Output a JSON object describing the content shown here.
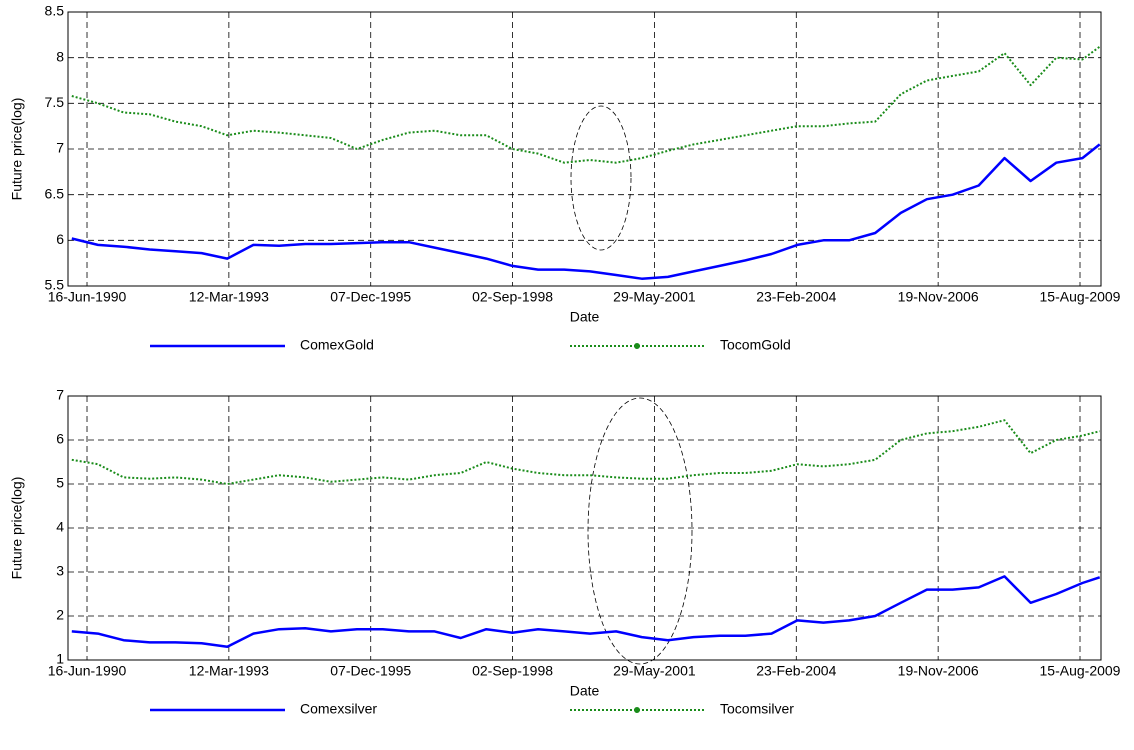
{
  "chart_data": [
    {
      "type": "line",
      "xlabel": "Date",
      "ylabel": "Future price(log)",
      "grid": true,
      "legend": "bottom",
      "x": [
        "1990-03-01",
        "1990-09-01",
        "1991-03-01",
        "1991-09-01",
        "1992-03-01",
        "1992-09-01",
        "1993-03-01",
        "1993-09-01",
        "1994-03-01",
        "1994-09-01",
        "1995-03-01",
        "1995-09-01",
        "1996-03-01",
        "1996-09-01",
        "1997-03-01",
        "1997-09-01",
        "1998-03-01",
        "1998-09-01",
        "1999-03-01",
        "1999-09-01",
        "2000-03-01",
        "2000-09-01",
        "2001-03-01",
        "2001-09-01",
        "2002-03-01",
        "2002-09-01",
        "2003-03-01",
        "2003-09-01",
        "2004-03-01",
        "2004-09-01",
        "2005-03-01",
        "2005-09-01",
        "2006-03-01",
        "2006-09-01",
        "2007-03-01",
        "2007-09-01",
        "2008-03-01",
        "2008-09-01",
        "2009-03-01",
        "2009-09-01",
        "2010-01-01"
      ],
      "xlim": [
        "1990-02-02",
        "2010-01-10"
      ],
      "xticks": [
        {
          "value": "1990-06-16",
          "label": "16-Jun-1990"
        },
        {
          "value": "1993-03-12",
          "label": "12-Mar-1993"
        },
        {
          "value": "1995-12-07",
          "label": "07-Dec-1995"
        },
        {
          "value": "1998-09-02",
          "label": "02-Sep-1998"
        },
        {
          "value": "2001-05-29",
          "label": "29-May-2001"
        },
        {
          "value": "2004-02-23",
          "label": "23-Feb-2004"
        },
        {
          "value": "2006-11-19",
          "label": "19-Nov-2006"
        },
        {
          "value": "2009-08-15",
          "label": "15-Aug-2009"
        }
      ],
      "ylim": [
        5.5,
        8.5
      ],
      "yticks": [
        5.5,
        6,
        6.5,
        7,
        7.5,
        8,
        8.5
      ],
      "series": [
        {
          "name": "ComexGold",
          "color": "#0000ff",
          "style": "solid",
          "values": [
            6.02,
            5.95,
            5.93,
            5.9,
            5.88,
            5.86,
            5.8,
            5.95,
            5.94,
            5.96,
            5.96,
            5.97,
            5.98,
            5.98,
            5.92,
            5.86,
            5.8,
            5.72,
            5.68,
            5.68,
            5.66,
            5.62,
            5.58,
            5.6,
            5.66,
            5.72,
            5.78,
            5.85,
            5.95,
            6.0,
            6.0,
            6.08,
            6.3,
            6.45,
            6.5,
            6.6,
            6.9,
            6.65,
            6.85,
            6.9,
            7.05
          ]
        },
        {
          "name": "TocomGold",
          "color": "#1a8c1a",
          "style": "dotted",
          "values": [
            7.58,
            7.5,
            7.4,
            7.38,
            7.3,
            7.25,
            7.15,
            7.2,
            7.18,
            7.15,
            7.12,
            7.0,
            7.1,
            7.18,
            7.2,
            7.15,
            7.15,
            7.0,
            6.95,
            6.85,
            6.88,
            6.85,
            6.9,
            6.98,
            7.05,
            7.1,
            7.15,
            7.2,
            7.25,
            7.25,
            7.28,
            7.3,
            7.6,
            7.75,
            7.8,
            7.85,
            8.05,
            7.7,
            8.0,
            7.98,
            8.12
          ]
        }
      ]
    },
    {
      "type": "line",
      "xlabel": "Date",
      "ylabel": "Future price(log)",
      "grid": true,
      "legend": "bottom",
      "x": [
        "1990-03-01",
        "1990-09-01",
        "1991-03-01",
        "1991-09-01",
        "1992-03-01",
        "1992-09-01",
        "1993-03-01",
        "1993-09-01",
        "1994-03-01",
        "1994-09-01",
        "1995-03-01",
        "1995-09-01",
        "1996-03-01",
        "1996-09-01",
        "1997-03-01",
        "1997-09-01",
        "1998-03-01",
        "1998-09-01",
        "1999-03-01",
        "1999-09-01",
        "2000-03-01",
        "2000-09-01",
        "2001-03-01",
        "2001-09-01",
        "2002-03-01",
        "2002-09-01",
        "2003-03-01",
        "2003-09-01",
        "2004-03-01",
        "2004-09-01",
        "2005-03-01",
        "2005-09-01",
        "2006-03-01",
        "2006-09-01",
        "2007-03-01",
        "2007-09-01",
        "2008-03-01",
        "2008-09-01",
        "2009-03-01",
        "2009-09-01",
        "2010-01-01"
      ],
      "xlim": [
        "1990-02-02",
        "2010-01-10"
      ],
      "xticks": [
        {
          "value": "1990-06-16",
          "label": "16-Jun-1990"
        },
        {
          "value": "1993-03-12",
          "label": "12-Mar-1993"
        },
        {
          "value": "1995-12-07",
          "label": "07-Dec-1995"
        },
        {
          "value": "1998-09-02",
          "label": "02-Sep-1998"
        },
        {
          "value": "2001-05-29",
          "label": "29-May-2001"
        },
        {
          "value": "2004-02-23",
          "label": "23-Feb-2004"
        },
        {
          "value": "2006-11-19",
          "label": "19-Nov-2006"
        },
        {
          "value": "2009-08-15",
          "label": "15-Aug-2009"
        }
      ],
      "ylim": [
        1,
        7
      ],
      "yticks": [
        1,
        2,
        3,
        4,
        5,
        6,
        7
      ],
      "series": [
        {
          "name": "Comexsilver",
          "color": "#0000ff",
          "style": "solid",
          "values": [
            1.65,
            1.6,
            1.45,
            1.4,
            1.4,
            1.38,
            1.3,
            1.6,
            1.7,
            1.72,
            1.65,
            1.7,
            1.7,
            1.65,
            1.65,
            1.5,
            1.7,
            1.62,
            1.7,
            1.65,
            1.6,
            1.65,
            1.52,
            1.45,
            1.52,
            1.55,
            1.55,
            1.6,
            1.9,
            1.85,
            1.9,
            2.0,
            2.3,
            2.6,
            2.6,
            2.65,
            2.9,
            2.3,
            2.5,
            2.75,
            2.88
          ]
        },
        {
          "name": "Tocomsilver",
          "color": "#1a8c1a",
          "style": "dotted",
          "values": [
            5.55,
            5.45,
            5.15,
            5.12,
            5.15,
            5.1,
            5.0,
            5.1,
            5.2,
            5.15,
            5.05,
            5.1,
            5.15,
            5.1,
            5.2,
            5.25,
            5.5,
            5.35,
            5.25,
            5.2,
            5.2,
            5.15,
            5.12,
            5.12,
            5.2,
            5.25,
            5.25,
            5.3,
            5.45,
            5.4,
            5.45,
            5.55,
            6.0,
            6.15,
            6.2,
            6.3,
            6.45,
            5.7,
            6.0,
            6.1,
            6.2
          ]
        }
      ]
    }
  ]
}
